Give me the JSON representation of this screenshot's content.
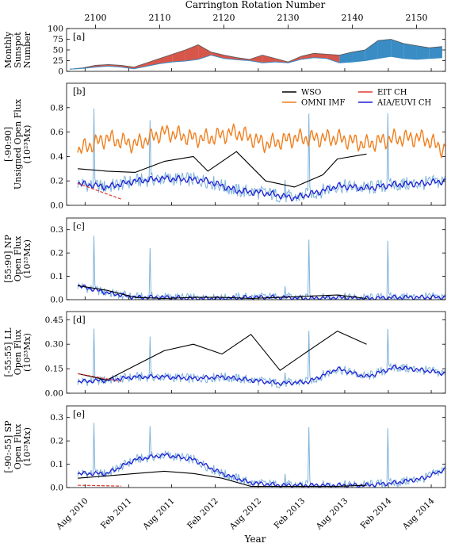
{
  "figure": {
    "top_axis_label": "Carrington Rotation Number",
    "xlabel": "Year",
    "top_ticks": [
      {
        "label": "2100",
        "cr": 2100
      },
      {
        "label": "2110",
        "cr": 2110
      },
      {
        "label": "2120",
        "cr": 2120
      },
      {
        "label": "2130",
        "cr": 2130
      },
      {
        "label": "2140",
        "cr": 2140
      },
      {
        "label": "2150",
        "cr": 2150
      }
    ],
    "date_ticks": [
      {
        "label": "Aug 2010",
        "date": "2010-08"
      },
      {
        "label": "Feb 2011",
        "date": "2011-02"
      },
      {
        "label": "Aug 2011",
        "date": "2011-08"
      },
      {
        "label": "Feb 2012",
        "date": "2012-02"
      },
      {
        "label": "Aug 2012",
        "date": "2012-08"
      },
      {
        "label": "Feb 2013",
        "date": "2013-02"
      },
      {
        "label": "Aug 2013",
        "date": "2013-08"
      },
      {
        "label": "Feb 2014",
        "date": "2014-02"
      },
      {
        "label": "Aug 2014",
        "date": "2014-08"
      }
    ],
    "legend": [
      {
        "label": "WSO",
        "color": "#000000"
      },
      {
        "label": "OMNI IMF",
        "color": "#f07f1e"
      },
      {
        "label": "EIT CH",
        "color": "#e03a30"
      },
      {
        "label": "AIA/EUVI CH",
        "color": "#1f1fd6"
      }
    ],
    "colors": {
      "wso": "#000000",
      "omni": "#f07f1e",
      "eit": "#e03a30",
      "aia": "#1f1fd6",
      "aia_raw": "#7fb3da",
      "fill_north": "#d7564a",
      "fill_south": "#3a8cc4"
    }
  },
  "chart_data": [
    {
      "panel": "a",
      "tag": "[a]",
      "type": "area",
      "ylabel": [
        "Monthly",
        "Sunspot",
        "Number"
      ],
      "ylim": [
        0,
        100
      ],
      "yticks": [
        "0",
        "25",
        "50",
        "75",
        "100"
      ],
      "cr": [
        2096,
        2098,
        2100,
        2102,
        2104,
        2106,
        2108,
        2110,
        2112,
        2114,
        2116,
        2118,
        2120,
        2122,
        2124,
        2126,
        2128,
        2130,
        2132,
        2134,
        2136,
        2138,
        2140,
        2142,
        2144,
        2146,
        2148,
        2150,
        2152,
        2154
      ],
      "series": [
        {
          "name": "upper",
          "values": [
            5,
            8,
            14,
            16,
            14,
            10,
            20,
            30,
            40,
            50,
            62,
            45,
            38,
            32,
            28,
            38,
            30,
            22,
            35,
            42,
            40,
            38,
            45,
            50,
            72,
            75,
            65,
            60,
            55,
            58
          ]
        },
        {
          "name": "lower",
          "values": [
            5,
            7,
            10,
            12,
            10,
            6,
            12,
            18,
            22,
            24,
            28,
            38,
            30,
            27,
            25,
            20,
            22,
            20,
            28,
            32,
            30,
            20,
            22,
            25,
            30,
            35,
            30,
            28,
            30,
            32
          ]
        }
      ]
    },
    {
      "panel": "b",
      "tag": "[b]",
      "type": "line",
      "ylabel": [
        "[-90:90]",
        "Unsigned Open Flux",
        "(10²³Mx)"
      ],
      "ylim": [
        0,
        1.0
      ],
      "yticks": [
        "0.0",
        "0.2",
        "0.4",
        "0.6",
        "0.8"
      ],
      "x": [
        "2010-07",
        "2010-11",
        "2011-03",
        "2011-07",
        "2011-11",
        "2012-01",
        "2012-05",
        "2012-09",
        "2013-01",
        "2013-05",
        "2013-07",
        "2013-11",
        "2014-03",
        "2014-07",
        "2014-10"
      ],
      "series": [
        {
          "name": "WSO",
          "values": [
            0.3,
            0.28,
            0.27,
            0.36,
            0.4,
            0.28,
            0.44,
            0.2,
            0.15,
            0.25,
            0.38,
            0.42,
            null,
            null,
            null
          ]
        },
        {
          "name": "OMNI IMF",
          "values": [
            0.45,
            0.55,
            0.5,
            0.6,
            0.55,
            0.55,
            0.6,
            0.5,
            0.55,
            0.55,
            0.55,
            0.5,
            0.55,
            0.55,
            0.45
          ]
        },
        {
          "name": "AIA/EUVI CH",
          "values": [
            0.18,
            0.15,
            0.2,
            0.22,
            0.21,
            0.2,
            0.12,
            0.1,
            0.06,
            0.12,
            0.16,
            0.14,
            0.17,
            0.18,
            0.2
          ]
        },
        {
          "name": "EIT CH",
          "values": [
            0.18,
            0.05,
            null,
            null,
            null,
            null,
            null,
            null,
            null,
            null,
            null,
            null,
            null,
            null,
            null
          ]
        }
      ]
    },
    {
      "panel": "c",
      "tag": "[c]",
      "type": "line",
      "ylabel": [
        "[55:90] NP",
        "Open Flux",
        "(10²³Mx)"
      ],
      "ylim": [
        0,
        0.35
      ],
      "yticks": [
        "0.0",
        "0.1",
        "0.2",
        "0.3"
      ],
      "x": [
        "2010-07",
        "2010-11",
        "2011-03",
        "2011-07",
        "2011-11",
        "2012-03",
        "2012-07",
        "2012-11",
        "2013-03",
        "2013-07",
        "2013-11",
        "2014-03",
        "2014-07",
        "2014-10"
      ],
      "series": [
        {
          "name": "WSO",
          "values": [
            0.06,
            0.04,
            0.01,
            0.005,
            0.01,
            0.01,
            0.005,
            0.01,
            0.015,
            0.02,
            0.005,
            null,
            null,
            null
          ]
        },
        {
          "name": "AIA/EUVI CH",
          "values": [
            0.06,
            0.03,
            0.01,
            0.01,
            0.005,
            0.005,
            0.01,
            0.01,
            0.005,
            0.01,
            0.005,
            0.01,
            0.01,
            0.01
          ]
        }
      ]
    },
    {
      "panel": "d",
      "tag": "[d]",
      "type": "line",
      "ylabel": [
        "[-55:55] LL",
        "Open Flux",
        "(10²³Mx)"
      ],
      "ylim": [
        0,
        0.5
      ],
      "yticks": [
        "0.00",
        "0.15",
        "0.30",
        "0.45"
      ],
      "x": [
        "2010-07",
        "2010-11",
        "2011-03",
        "2011-07",
        "2011-11",
        "2012-03",
        "2012-07",
        "2012-11",
        "2013-03",
        "2013-07",
        "2013-11",
        "2014-03",
        "2014-07",
        "2014-10"
      ],
      "series": [
        {
          "name": "WSO",
          "values": [
            0.12,
            0.08,
            0.17,
            0.26,
            0.3,
            0.24,
            0.36,
            0.14,
            0.26,
            0.38,
            0.3,
            null,
            null,
            null
          ]
        },
        {
          "name": "AIA/EUVI CH",
          "values": [
            0.07,
            0.08,
            0.1,
            0.1,
            0.09,
            0.1,
            0.08,
            0.06,
            0.07,
            0.15,
            0.1,
            0.16,
            0.14,
            0.12
          ]
        },
        {
          "name": "EIT CH",
          "values": [
            0.12,
            null,
            null,
            null,
            null,
            null,
            null,
            null,
            null,
            null,
            null,
            null,
            null,
            null
          ]
        }
      ]
    },
    {
      "panel": "e",
      "tag": "[e]",
      "type": "line",
      "ylabel": [
        "[-90:-55] SP",
        "Open Flux",
        "(10²³Mx)"
      ],
      "ylim": [
        0,
        0.35
      ],
      "yticks": [
        "0.0",
        "0.1",
        "0.2",
        "0.3"
      ],
      "x": [
        "2010-07",
        "2010-11",
        "2011-03",
        "2011-07",
        "2011-11",
        "2012-03",
        "2012-07",
        "2012-11",
        "2013-03",
        "2013-07",
        "2013-11",
        "2014-03",
        "2014-07",
        "2014-10"
      ],
      "series": [
        {
          "name": "WSO",
          "values": [
            0.04,
            0.05,
            0.06,
            0.07,
            0.06,
            0.04,
            0.005,
            0.005,
            0.005,
            0.005,
            0.01,
            null,
            null,
            null
          ]
        },
        {
          "name": "AIA/EUVI CH",
          "values": [
            0.06,
            0.06,
            0.12,
            0.14,
            0.12,
            0.06,
            0.02,
            0.01,
            0.01,
            0.01,
            0.01,
            0.02,
            0.04,
            0.08
          ]
        },
        {
          "name": "EIT CH",
          "values": [
            0.01,
            null,
            null,
            null,
            null,
            null,
            null,
            null,
            null,
            null,
            null,
            null,
            null,
            null
          ]
        }
      ]
    }
  ]
}
